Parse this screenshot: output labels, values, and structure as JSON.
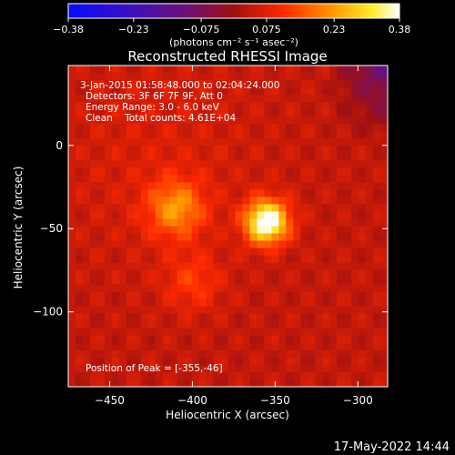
{
  "chart_data": {
    "type": "heatmap",
    "title": "Reconstructed RHESSI Image",
    "xlabel": "Heliocentric X (arcsec)",
    "ylabel": "Heliocentric Y (arcsec)",
    "xlim": [
      -475,
      -282
    ],
    "ylim": [
      -145,
      48
    ],
    "x_ticks": [
      -450,
      -400,
      -350,
      -300
    ],
    "y_ticks": [
      0,
      -50,
      -100
    ],
    "x_tick_labels": [
      "−450",
      "−400",
      "−350",
      "−300"
    ],
    "y_tick_labels": [
      "0",
      "−50",
      "−100"
    ],
    "grid": false,
    "colorbar": {
      "position": "top",
      "range": [
        -0.38,
        0.38
      ],
      "ticks": [
        -0.38,
        -0.23,
        -0.075,
        0.075,
        0.23,
        0.38
      ],
      "tick_labels": [
        "−0.38",
        "−0.23",
        "−0.075",
        "0.075",
        "0.23",
        "0.38"
      ],
      "units_label": "(photons cm⁻² s⁻¹ asec⁻²)",
      "colormap": "rainbow-like: blue, purple, red, orange, yellow, white"
    },
    "sources": [
      {
        "x": -355,
        "y": -46,
        "peak": 0.38
      },
      {
        "x": -410,
        "y": -38,
        "peak": 0.17
      },
      {
        "x": -400,
        "y": -82,
        "peak": 0.08
      }
    ],
    "background_level": 0.04,
    "annotations": [
      "3-Jan-2015 01:58:48.000 to 02:04:24.000",
      "Detectors: 3F 6F 7F 9F, Att 0",
      "Energy Range: 3.0 - 6.0 keV",
      "Clean    Total counts: 4.61E+04",
      "Position of Peak = [-355,-46]"
    ],
    "footer_timestamp": "17-May-2022 14:44"
  }
}
